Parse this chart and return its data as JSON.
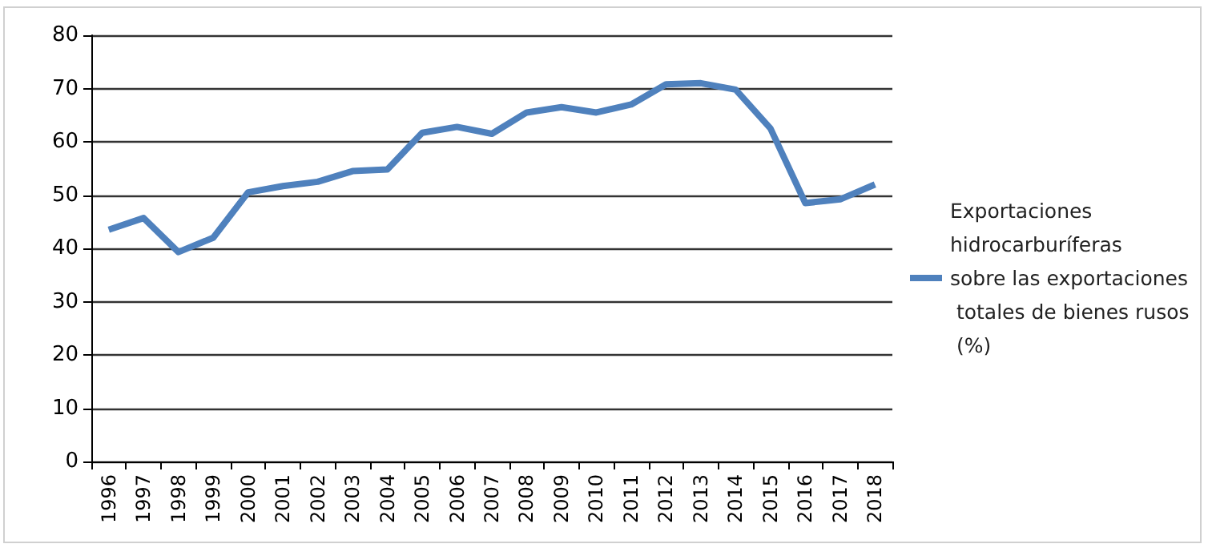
{
  "chart_data": {
    "type": "line",
    "categories": [
      "1996",
      "1997",
      "1998",
      "1999",
      "2000",
      "2001",
      "2002",
      "2003",
      "2004",
      "2005",
      "2006",
      "2007",
      "2008",
      "2009",
      "2010",
      "2011",
      "2012",
      "2013",
      "2014",
      "2015",
      "2016",
      "2017",
      "2018"
    ],
    "series": [
      {
        "name": "Exportaciones hidrocarburíferas sobre las exportaciones totales de bienes rusos (%)",
        "color": "#4f81bd",
        "values": [
          43.5,
          45.7,
          39.3,
          42,
          50.5,
          51.7,
          52.5,
          54.5,
          54.8,
          61.7,
          62.8,
          61.5,
          65.5,
          66.5,
          65.5,
          67,
          70.8,
          71,
          69.8,
          62.5,
          48.5,
          49.2,
          52
        ]
      }
    ],
    "ylim": [
      0,
      80
    ],
    "yticks": [
      0,
      10,
      20,
      30,
      40,
      50,
      60,
      70,
      80
    ],
    "grid": "y",
    "legend": "right",
    "marker": "none",
    "line_style": "solid"
  }
}
